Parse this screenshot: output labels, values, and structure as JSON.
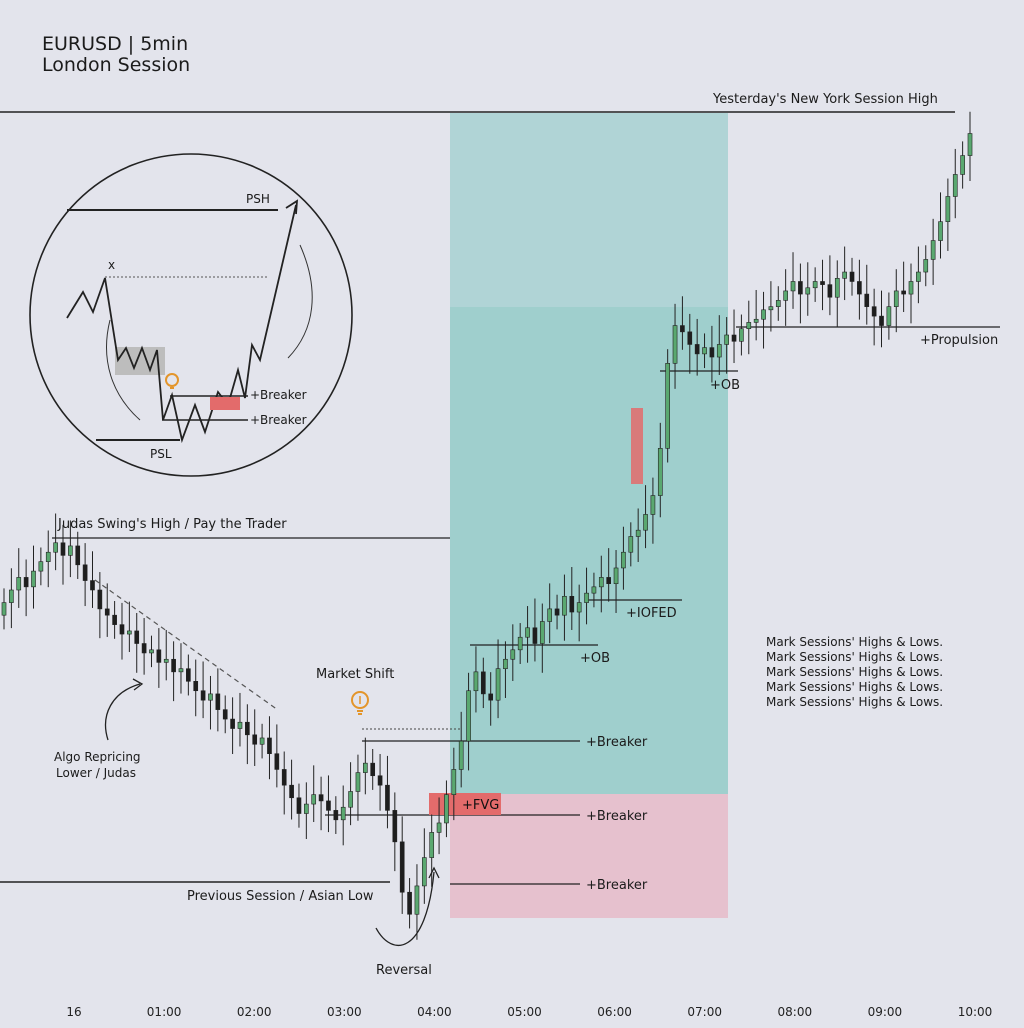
{
  "header": {
    "line1": "EURUSD | 5min",
    "line2": "London Session"
  },
  "colors": {
    "bull": "#5aa870",
    "bear": "#1e1e1e",
    "premium_zone": "#9fcfcf",
    "discount_zone": "#e6b7c8",
    "fvg": "#e36b6b",
    "background": "#e3e4ec"
  },
  "x_ticks": [
    "16",
    "01:00",
    "02:00",
    "03:00",
    "04:00",
    "05:00",
    "06:00",
    "07:00",
    "08:00",
    "09:00",
    "10:00"
  ],
  "levels": {
    "ny_high": "Yesterday's New York Session High",
    "judas_high": "Judas Swing's High / Pay the Trader",
    "asian_low": "Previous Session / Asian Low",
    "propulsion": "+Propulsion"
  },
  "annotations": {
    "market_shift": "Market Shift",
    "algo_line1": "Algo Repricing",
    "algo_line2": "Lower / Judas",
    "reversal": "Reversal",
    "fvg": "+FVG",
    "breaker_1": "+Breaker",
    "breaker_2": "+Breaker",
    "breaker_3": "+Breaker",
    "ob_1": "+OB",
    "iofed": "+IOFED",
    "ob_2": "+OB"
  },
  "notes": [
    "Mark Sessions' Highs & Lows.",
    "Mark Sessions' Highs & Lows.",
    "Mark Sessions' Highs & Lows.",
    "Mark Sessions' Highs & Lows.",
    "Mark Sessions' Highs & Lows."
  ],
  "inset": {
    "psh": "PSH",
    "psl": "PSL",
    "x_mark": "x",
    "breaker_top": "+Breaker",
    "breaker_bottom": "+Breaker"
  },
  "chart_data": {
    "type": "candlestick",
    "title": "EURUSD | 5min",
    "subtitle": "London Session",
    "x_ticks": [
      "16",
      "01:00",
      "02:00",
      "03:00",
      "04:00",
      "05:00",
      "06:00",
      "07:00",
      "08:00",
      "09:00",
      "10:00"
    ],
    "closes": [
      5.4,
      5.8,
      6.2,
      5.9,
      6.4,
      6.7,
      7.0,
      7.3,
      6.9,
      7.2,
      6.6,
      6.1,
      5.8,
      5.2,
      5.0,
      4.7,
      4.4,
      4.5,
      4.1,
      3.8,
      3.9,
      3.5,
      3.6,
      3.2,
      3.3,
      2.9,
      2.6,
      2.3,
      2.5,
      2.0,
      1.7,
      1.4,
      1.6,
      1.2,
      0.9,
      1.1,
      0.6,
      0.1,
      -0.4,
      -0.8,
      -1.3,
      -1.0,
      -0.7,
      -0.9,
      -1.2,
      -1.5,
      -1.1,
      -0.6,
      0.0,
      0.3,
      -0.1,
      -0.4,
      -1.2,
      -2.2,
      -3.8,
      -4.5,
      -3.6,
      -2.7,
      -1.9,
      -1.6,
      -0.7,
      0.1,
      1.0,
      2.6,
      3.2,
      2.5,
      2.3,
      3.3,
      3.6,
      3.9,
      4.3,
      4.6,
      4.1,
      4.8,
      5.2,
      5.0,
      5.6,
      5.1,
      5.4,
      5.7,
      5.9,
      6.2,
      6.0,
      6.5,
      7.0,
      7.5,
      7.7,
      8.2,
      8.8,
      10.3,
      13.0,
      14.2,
      14.0,
      13.6,
      13.3,
      13.5,
      13.2,
      13.6,
      13.9,
      13.7,
      14.1,
      14.3,
      14.4,
      14.7,
      14.8,
      15.0,
      15.3,
      15.6,
      15.2,
      15.4,
      15.6,
      15.5,
      15.1,
      15.7,
      15.9,
      15.6,
      15.2,
      14.8,
      14.5,
      14.2,
      14.8,
      15.3,
      15.2,
      15.6,
      15.9,
      16.3,
      16.9,
      17.5,
      18.3,
      19.0,
      19.6,
      20.3
    ],
    "y_range": [
      -5,
      22
    ]
  }
}
